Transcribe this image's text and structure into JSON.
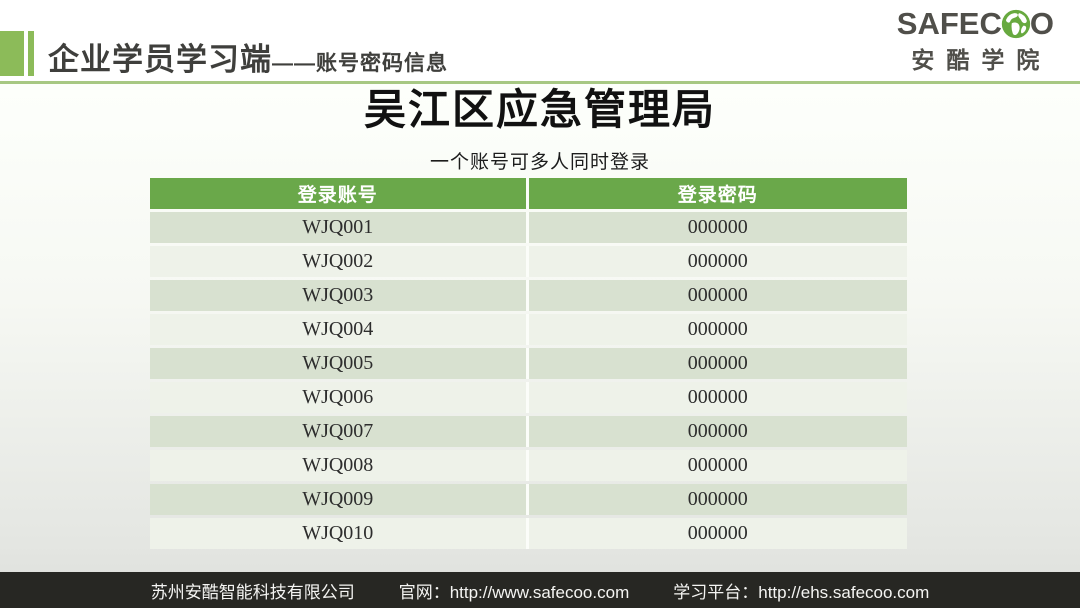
{
  "header": {
    "title_main": "企业学员学习端",
    "title_sub": "——账号密码信息",
    "logo": {
      "brand_left": "SAFEC",
      "brand_right": "O",
      "globe_icon": "globe-icon",
      "cn_name": "安酷学院"
    }
  },
  "main": {
    "title": "吴江区应急管理局",
    "subtitle": "一个账号可多人同时登录",
    "table": {
      "columns": [
        "登录账号",
        "登录密码"
      ],
      "rows": [
        [
          "WJQ001",
          "000000"
        ],
        [
          "WJQ002",
          "000000"
        ],
        [
          "WJQ003",
          "000000"
        ],
        [
          "WJQ004",
          "000000"
        ],
        [
          "WJQ005",
          "000000"
        ],
        [
          "WJQ006",
          "000000"
        ],
        [
          "WJQ007",
          "000000"
        ],
        [
          "WJQ008",
          "000000"
        ],
        [
          "WJQ009",
          "000000"
        ],
        [
          "WJQ010",
          "000000"
        ]
      ]
    }
  },
  "footer": {
    "company": "苏州安酷智能科技有限公司",
    "website_label": "官网：",
    "website_url": "http://www.safecoo.com",
    "platform_label": "学习平台：",
    "platform_url": "http://ehs.safecoo.com"
  },
  "colors": {
    "accent_green": "#6aa84a",
    "decor_green": "#8cbb59",
    "divider_green": "#a7c883",
    "globe_green": "#67a93f",
    "row_odd": "#d8e1d0",
    "row_even": "#eef2e9",
    "footer_bg": "#272723"
  }
}
